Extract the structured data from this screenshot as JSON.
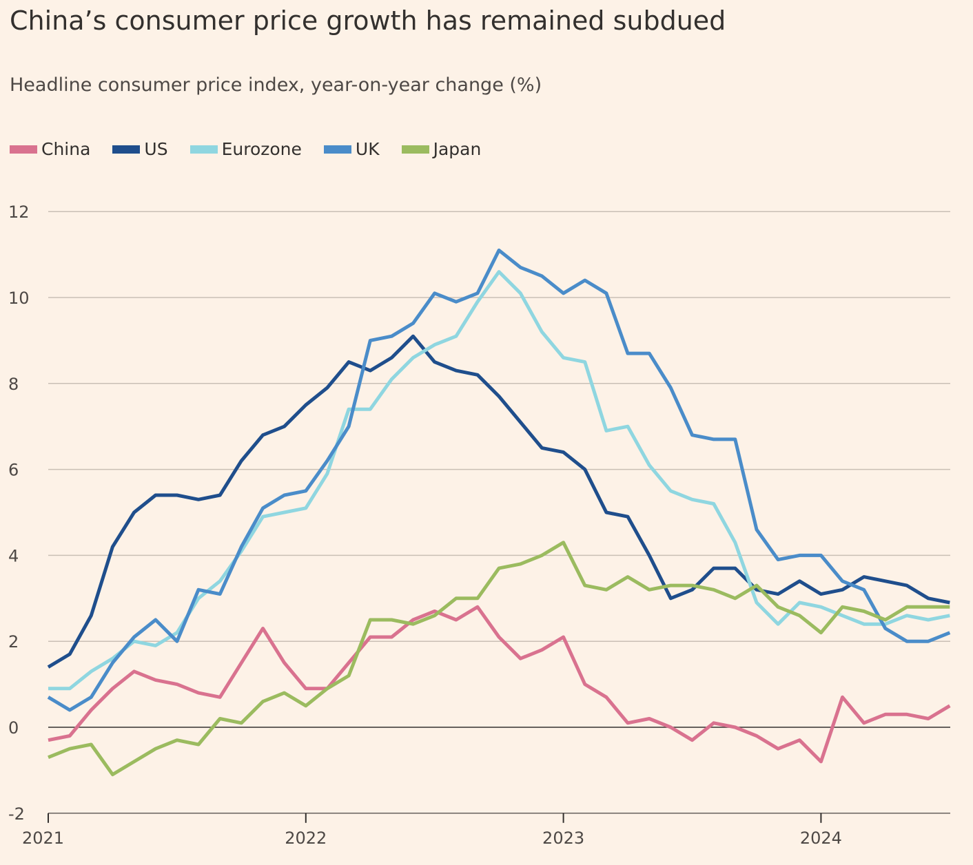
{
  "title": "China’s consumer price growth has remained subdued",
  "subtitle": "Headline consumer price index, year-on-year change (%)",
  "chart_data": {
    "type": "line",
    "title": "China’s consumer price growth has remained subdued",
    "subtitle": "Headline consumer price index, year-on-year change (%)",
    "xlabel": "",
    "ylabel": "",
    "x_start": "2021-01",
    "x_frequency": "monthly",
    "x_ticks": [
      "2021",
      "2022",
      "2023",
      "2024"
    ],
    "y_ticks": [
      12,
      10,
      8,
      6,
      4,
      2,
      0,
      -2
    ],
    "ylim": [
      -2,
      12
    ],
    "xlim": [
      "2021-01",
      "2024-07"
    ],
    "grid": "horizontal",
    "legend": "top-left",
    "series": [
      {
        "name": "China",
        "color": "#d9728f",
        "values": [
          -0.3,
          -0.2,
          0.4,
          0.9,
          1.3,
          1.1,
          1.0,
          0.8,
          0.7,
          1.5,
          2.3,
          1.5,
          0.9,
          0.9,
          1.5,
          2.1,
          2.1,
          2.5,
          2.7,
          2.5,
          2.8,
          2.1,
          1.6,
          1.8,
          2.1,
          1.0,
          0.7,
          0.1,
          0.2,
          0.0,
          -0.3,
          0.1,
          0.0,
          -0.2,
          -0.5,
          -0.3,
          -0.8,
          0.7,
          0.1,
          0.3,
          0.3,
          0.2,
          0.5
        ]
      },
      {
        "name": "US",
        "color": "#1f4e8c",
        "values": [
          1.4,
          1.7,
          2.6,
          4.2,
          5.0,
          5.4,
          5.4,
          5.3,
          5.4,
          6.2,
          6.8,
          7.0,
          7.5,
          7.9,
          8.5,
          8.3,
          8.6,
          9.1,
          8.5,
          8.3,
          8.2,
          7.7,
          7.1,
          6.5,
          6.4,
          6.0,
          5.0,
          4.9,
          4.0,
          3.0,
          3.2,
          3.7,
          3.7,
          3.2,
          3.1,
          3.4,
          3.1,
          3.2,
          3.5,
          3.4,
          3.3,
          3.0,
          2.9
        ]
      },
      {
        "name": "Eurozone",
        "color": "#8fd6e0",
        "values": [
          0.9,
          0.9,
          1.3,
          1.6,
          2.0,
          1.9,
          2.2,
          3.0,
          3.4,
          4.1,
          4.9,
          5.0,
          5.1,
          5.9,
          7.4,
          7.4,
          8.1,
          8.6,
          8.9,
          9.1,
          9.9,
          10.6,
          10.1,
          9.2,
          8.6,
          8.5,
          6.9,
          7.0,
          6.1,
          5.5,
          5.3,
          5.2,
          4.3,
          2.9,
          2.4,
          2.9,
          2.8,
          2.6,
          2.4,
          2.4,
          2.6,
          2.5,
          2.6
        ]
      },
      {
        "name": "UK",
        "color": "#4a8cc9",
        "values": [
          0.7,
          0.4,
          0.7,
          1.5,
          2.1,
          2.5,
          2.0,
          3.2,
          3.1,
          4.2,
          5.1,
          5.4,
          5.5,
          6.2,
          7.0,
          9.0,
          9.1,
          9.4,
          10.1,
          9.9,
          10.1,
          11.1,
          10.7,
          10.5,
          10.1,
          10.4,
          10.1,
          8.7,
          8.7,
          7.9,
          6.8,
          6.7,
          6.7,
          4.6,
          3.9,
          4.0,
          4.0,
          3.4,
          3.2,
          2.3,
          2.0,
          2.0,
          2.2
        ]
      },
      {
        "name": "Japan",
        "color": "#9bbb5f",
        "values": [
          -0.7,
          -0.5,
          -0.4,
          -1.1,
          -0.8,
          -0.5,
          -0.3,
          -0.4,
          0.2,
          0.1,
          0.6,
          0.8,
          0.5,
          0.9,
          1.2,
          2.5,
          2.5,
          2.4,
          2.6,
          3.0,
          3.0,
          3.7,
          3.8,
          4.0,
          4.3,
          3.3,
          3.2,
          3.5,
          3.2,
          3.3,
          3.3,
          3.2,
          3.0,
          3.3,
          2.8,
          2.6,
          2.2,
          2.8,
          2.7,
          2.5,
          2.8,
          2.8,
          2.8
        ]
      }
    ]
  }
}
